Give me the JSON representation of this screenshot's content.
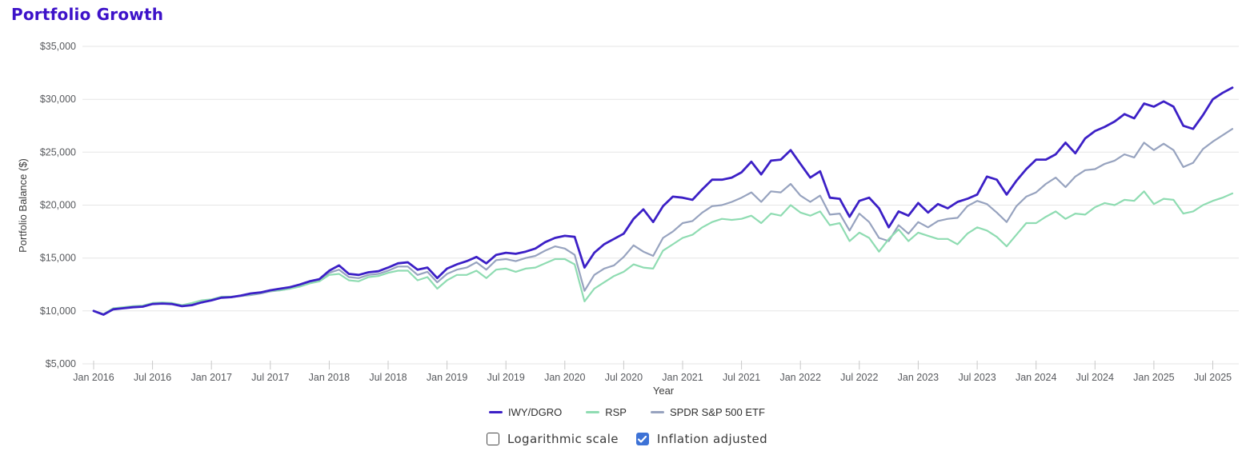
{
  "page": {
    "title": "Portfolio Growth"
  },
  "chart_data": {
    "type": "line",
    "title": "Portfolio Growth",
    "xlabel": "Year",
    "ylabel": "Portfolio Balance ($)",
    "ylim": [
      5000,
      35000
    ],
    "grid": "horizontal",
    "legend_position": "bottom",
    "y_ticks": [
      5000,
      10000,
      15000,
      20000,
      25000,
      30000,
      35000
    ],
    "y_tick_labels": [
      "$5,000",
      "$10,000",
      "$15,000",
      "$20,000",
      "$25,000",
      "$30,000",
      "$35,000"
    ],
    "x_tick_labels": [
      "Jan 2016",
      "Jul 2016",
      "Jan 2017",
      "Jul 2017",
      "Jan 2018",
      "Jul 2018",
      "Jan 2019",
      "Jul 2019",
      "Jan 2020",
      "Jul 2020",
      "Jan 2021",
      "Jul 2021",
      "Jan 2022",
      "Jul 2022",
      "Jan 2023",
      "Jul 2023",
      "Jan 2024",
      "Jul 2024",
      "Jan 2025",
      "Jul 2025"
    ],
    "x_tick_every": 6,
    "x": [
      "Jan 2016",
      "Feb 2016",
      "Mar 2016",
      "Apr 2016",
      "May 2016",
      "Jun 2016",
      "Jul 2016",
      "Aug 2016",
      "Sep 2016",
      "Oct 2016",
      "Nov 2016",
      "Dec 2016",
      "Jan 2017",
      "Feb 2017",
      "Mar 2017",
      "Apr 2017",
      "May 2017",
      "Jun 2017",
      "Jul 2017",
      "Aug 2017",
      "Sep 2017",
      "Oct 2017",
      "Nov 2017",
      "Dec 2017",
      "Jan 2018",
      "Feb 2018",
      "Mar 2018",
      "Apr 2018",
      "May 2018",
      "Jun 2018",
      "Jul 2018",
      "Aug 2018",
      "Sep 2018",
      "Oct 2018",
      "Nov 2018",
      "Dec 2018",
      "Jan 2019",
      "Feb 2019",
      "Mar 2019",
      "Apr 2019",
      "May 2019",
      "Jun 2019",
      "Jul 2019",
      "Aug 2019",
      "Sep 2019",
      "Oct 2019",
      "Nov 2019",
      "Dec 2019",
      "Jan 2020",
      "Feb 2020",
      "Mar 2020",
      "Apr 2020",
      "May 2020",
      "Jun 2020",
      "Jul 2020",
      "Aug 2020",
      "Sep 2020",
      "Oct 2020",
      "Nov 2020",
      "Dec 2020",
      "Jan 2021",
      "Feb 2021",
      "Mar 2021",
      "Apr 2021",
      "May 2021",
      "Jun 2021",
      "Jul 2021",
      "Aug 2021",
      "Sep 2021",
      "Oct 2021",
      "Nov 2021",
      "Dec 2021",
      "Jan 2022",
      "Feb 2022",
      "Mar 2022",
      "Apr 2022",
      "May 2022",
      "Jun 2022",
      "Jul 2022",
      "Aug 2022",
      "Sep 2022",
      "Oct 2022",
      "Nov 2022",
      "Dec 2022",
      "Jan 2023",
      "Feb 2023",
      "Mar 2023",
      "Apr 2023",
      "May 2023",
      "Jun 2023",
      "Jul 2023",
      "Aug 2023",
      "Sep 2023",
      "Oct 2023",
      "Nov 2023",
      "Dec 2023",
      "Jan 2024",
      "Feb 2024",
      "Mar 2024",
      "Apr 2024",
      "May 2024",
      "Jun 2024",
      "Jul 2024",
      "Aug 2024",
      "Sep 2024",
      "Oct 2024",
      "Nov 2024",
      "Dec 2024",
      "Jan 2025",
      "Feb 2025",
      "Mar 2025",
      "Apr 2025",
      "May 2025",
      "Jun 2025",
      "Jul 2025",
      "Aug 2025",
      "Sep 2025"
    ],
    "series": [
      {
        "name": "IWY/DGRO",
        "color": "#3c20c6",
        "values": [
          10000,
          9650,
          10150,
          10250,
          10350,
          10400,
          10650,
          10700,
          10650,
          10450,
          10550,
          10800,
          11000,
          11250,
          11300,
          11450,
          11650,
          11750,
          11950,
          12100,
          12250,
          12500,
          12800,
          13000,
          13800,
          14300,
          13500,
          13400,
          13650,
          13750,
          14100,
          14500,
          14600,
          13900,
          14100,
          13100,
          14000,
          14400,
          14700,
          15100,
          14500,
          15300,
          15500,
          15400,
          15600,
          15900,
          16500,
          16900,
          17100,
          17000,
          14100,
          15500,
          16300,
          16800,
          17300,
          18700,
          19600,
          18400,
          19900,
          20800,
          20700,
          20500,
          21500,
          22400,
          22400,
          22600,
          23100,
          24100,
          22900,
          24200,
          24300,
          25200,
          23900,
          22600,
          23200,
          20700,
          20600,
          18900,
          20400,
          20700,
          19700,
          17900,
          19400,
          19000,
          20200,
          19300,
          20100,
          19700,
          20300,
          20600,
          21000,
          22700,
          22400,
          21000,
          22300,
          23400,
          24300,
          24300,
          24800,
          25900,
          24900,
          26300,
          27000,
          27400,
          27900,
          28600,
          28200,
          29600,
          29300,
          29800,
          29300,
          27500,
          27200,
          28500,
          30000,
          30600,
          31100
        ]
      },
      {
        "name": "RSP",
        "color": "#8fdcb2",
        "values": [
          10000,
          9700,
          10250,
          10350,
          10450,
          10500,
          10750,
          10800,
          10750,
          10550,
          10750,
          11000,
          11100,
          11350,
          11350,
          11450,
          11550,
          11700,
          11900,
          11950,
          12100,
          12300,
          12600,
          12800,
          13400,
          13500,
          12900,
          12800,
          13200,
          13300,
          13600,
          13800,
          13800,
          12900,
          13200,
          12100,
          12900,
          13400,
          13400,
          13800,
          13100,
          13900,
          14000,
          13700,
          14000,
          14100,
          14500,
          14900,
          14900,
          14400,
          10900,
          12100,
          12700,
          13300,
          13700,
          14400,
          14100,
          14000,
          15700,
          16300,
          16900,
          17200,
          17900,
          18400,
          18700,
          18600,
          18700,
          19000,
          18300,
          19200,
          19000,
          20000,
          19300,
          19000,
          19400,
          18100,
          18300,
          16600,
          17400,
          16900,
          15600,
          16800,
          17700,
          16600,
          17400,
          17100,
          16800,
          16800,
          16300,
          17300,
          17900,
          17600,
          17000,
          16100,
          17200,
          18300,
          18300,
          18900,
          19400,
          18700,
          19200,
          19100,
          19800,
          20200,
          20000,
          20500,
          20400,
          21300,
          20100,
          20600,
          20500,
          19200,
          19400,
          20000,
          20400,
          20700,
          21100
        ]
      },
      {
        "name": "SPDR S&P 500 ETF",
        "color": "#97a3bf",
        "values": [
          10000,
          9700,
          10200,
          10300,
          10400,
          10450,
          10700,
          10750,
          10700,
          10500,
          10650,
          10900,
          11000,
          11300,
          11300,
          11400,
          11500,
          11650,
          11850,
          11950,
          12100,
          12400,
          12700,
          12900,
          13600,
          13900,
          13200,
          13100,
          13400,
          13500,
          13800,
          14200,
          14200,
          13400,
          13700,
          12700,
          13500,
          13900,
          14100,
          14600,
          13900,
          14800,
          14900,
          14700,
          15000,
          15200,
          15700,
          16100,
          15900,
          15300,
          11900,
          13400,
          14000,
          14300,
          15100,
          16200,
          15600,
          15200,
          16900,
          17500,
          18300,
          18500,
          19300,
          19900,
          20000,
          20300,
          20700,
          21200,
          20300,
          21300,
          21200,
          22000,
          20900,
          20300,
          20900,
          19100,
          19200,
          17600,
          19200,
          18400,
          16900,
          16600,
          18100,
          17300,
          18400,
          17900,
          18500,
          18700,
          18800,
          19900,
          20400,
          20100,
          19300,
          18400,
          19900,
          20800,
          21200,
          22000,
          22600,
          21700,
          22700,
          23300,
          23400,
          23900,
          24200,
          24800,
          24500,
          25900,
          25200,
          25800,
          25200,
          23600,
          24000,
          25300,
          26000,
          26600,
          27200
        ]
      }
    ]
  },
  "controls": {
    "logarithmic": {
      "label": "Logarithmic scale",
      "checked": false
    },
    "inflation": {
      "label": "Inflation adjusted",
      "checked": true
    }
  },
  "colors": {
    "title": "#3d12c9",
    "gridline": "#e6e6e6",
    "tick_text": "#57595d",
    "checkbox_checked": "#3d72d6"
  }
}
